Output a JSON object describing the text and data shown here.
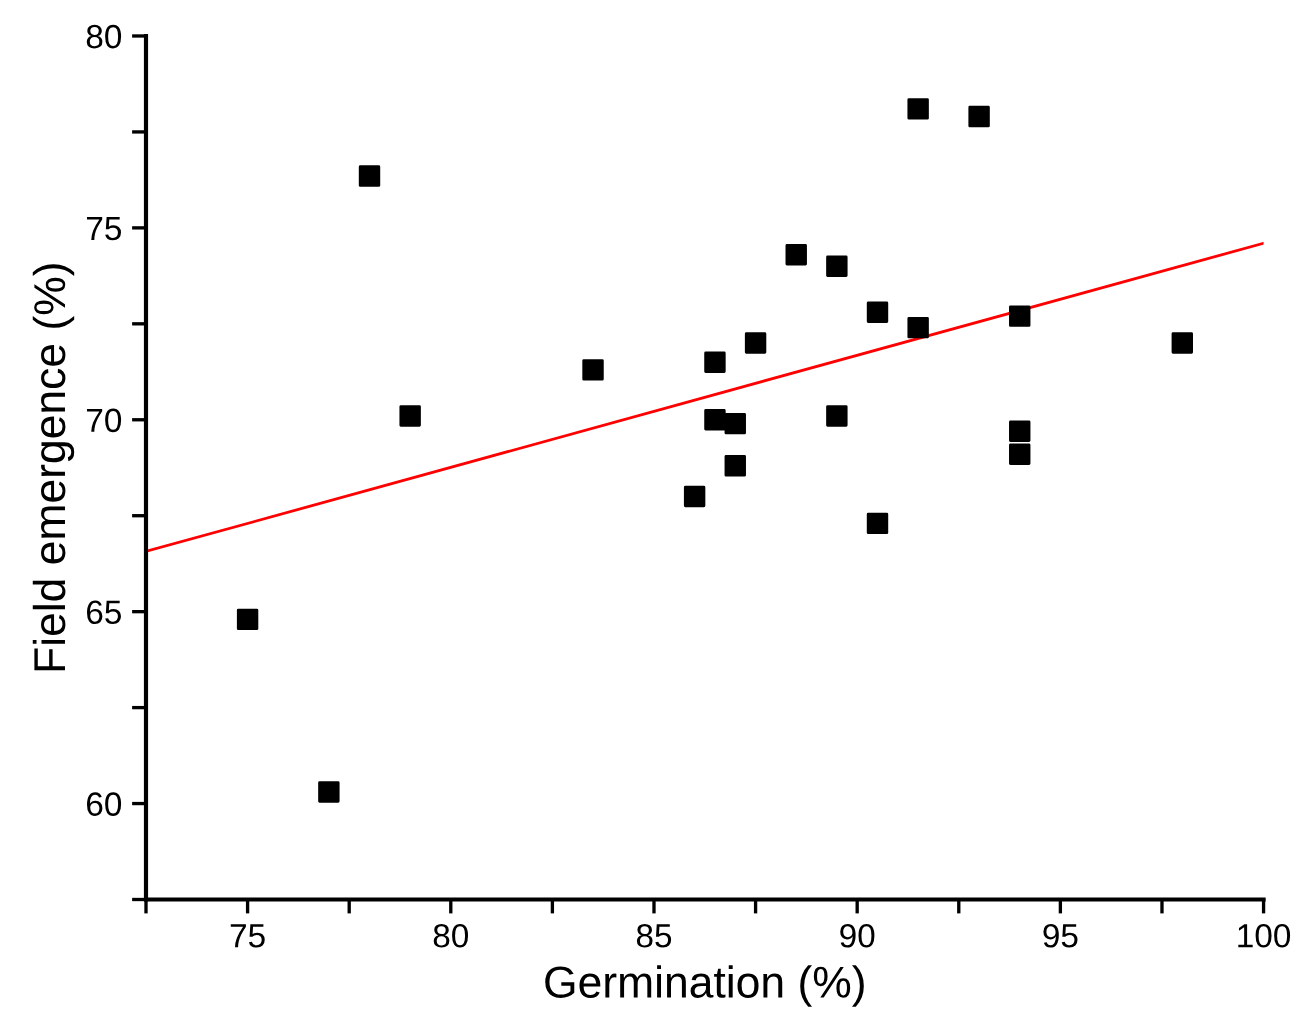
{
  "chart_data": {
    "type": "scatter",
    "xlabel": "Germination (%)",
    "ylabel": "Field emergence (%)",
    "xlim": [
      72.5,
      100
    ],
    "ylim": [
      57.5,
      80
    ],
    "xticks": [
      {
        "value": 72.5,
        "label": null
      },
      75,
      {
        "value": 77.5,
        "label": null
      },
      80,
      {
        "value": 82.5,
        "label": null
      },
      85,
      {
        "value": 87.5,
        "label": null
      },
      90,
      {
        "value": 92.5,
        "label": null
      },
      95,
      {
        "value": 97.5,
        "label": null
      },
      100
    ],
    "yticks": [
      {
        "value": 57.5,
        "label": null
      },
      60,
      {
        "value": 62.5,
        "label": null
      },
      65,
      {
        "value": 67.5,
        "label": null
      },
      70,
      {
        "value": 72.5,
        "label": null
      },
      75,
      {
        "value": 77.5,
        "label": null
      },
      80
    ],
    "grid": false,
    "legend": false,
    "series": [
      {
        "color": "#000000",
        "marker": "square",
        "x": [
          75,
          77.0,
          78.0,
          79.0,
          83.5,
          86.0,
          86.5,
          86.5,
          87.0,
          87.0,
          87.5,
          88.5,
          89.5,
          89.5,
          90.5,
          90.5,
          91.5,
          91.5,
          93.0,
          94.0,
          94.0,
          94.0,
          98.0
        ],
        "values": [
          64.8,
          60.3,
          76.35,
          70.1,
          71.3,
          68.0,
          71.5,
          70.0,
          69.9,
          68.8,
          72.0,
          74.3,
          74.0,
          70.1,
          72.8,
          67.3,
          72.4,
          78.1,
          77.9,
          72.7,
          69.7,
          69.1,
          72.0
        ]
      },
      {
        "type": "line",
        "color": "#ff0000",
        "line_style": "solid",
        "x": [
          72.5,
          100
        ],
        "values": [
          66.57,
          74.6
        ]
      }
    ]
  }
}
